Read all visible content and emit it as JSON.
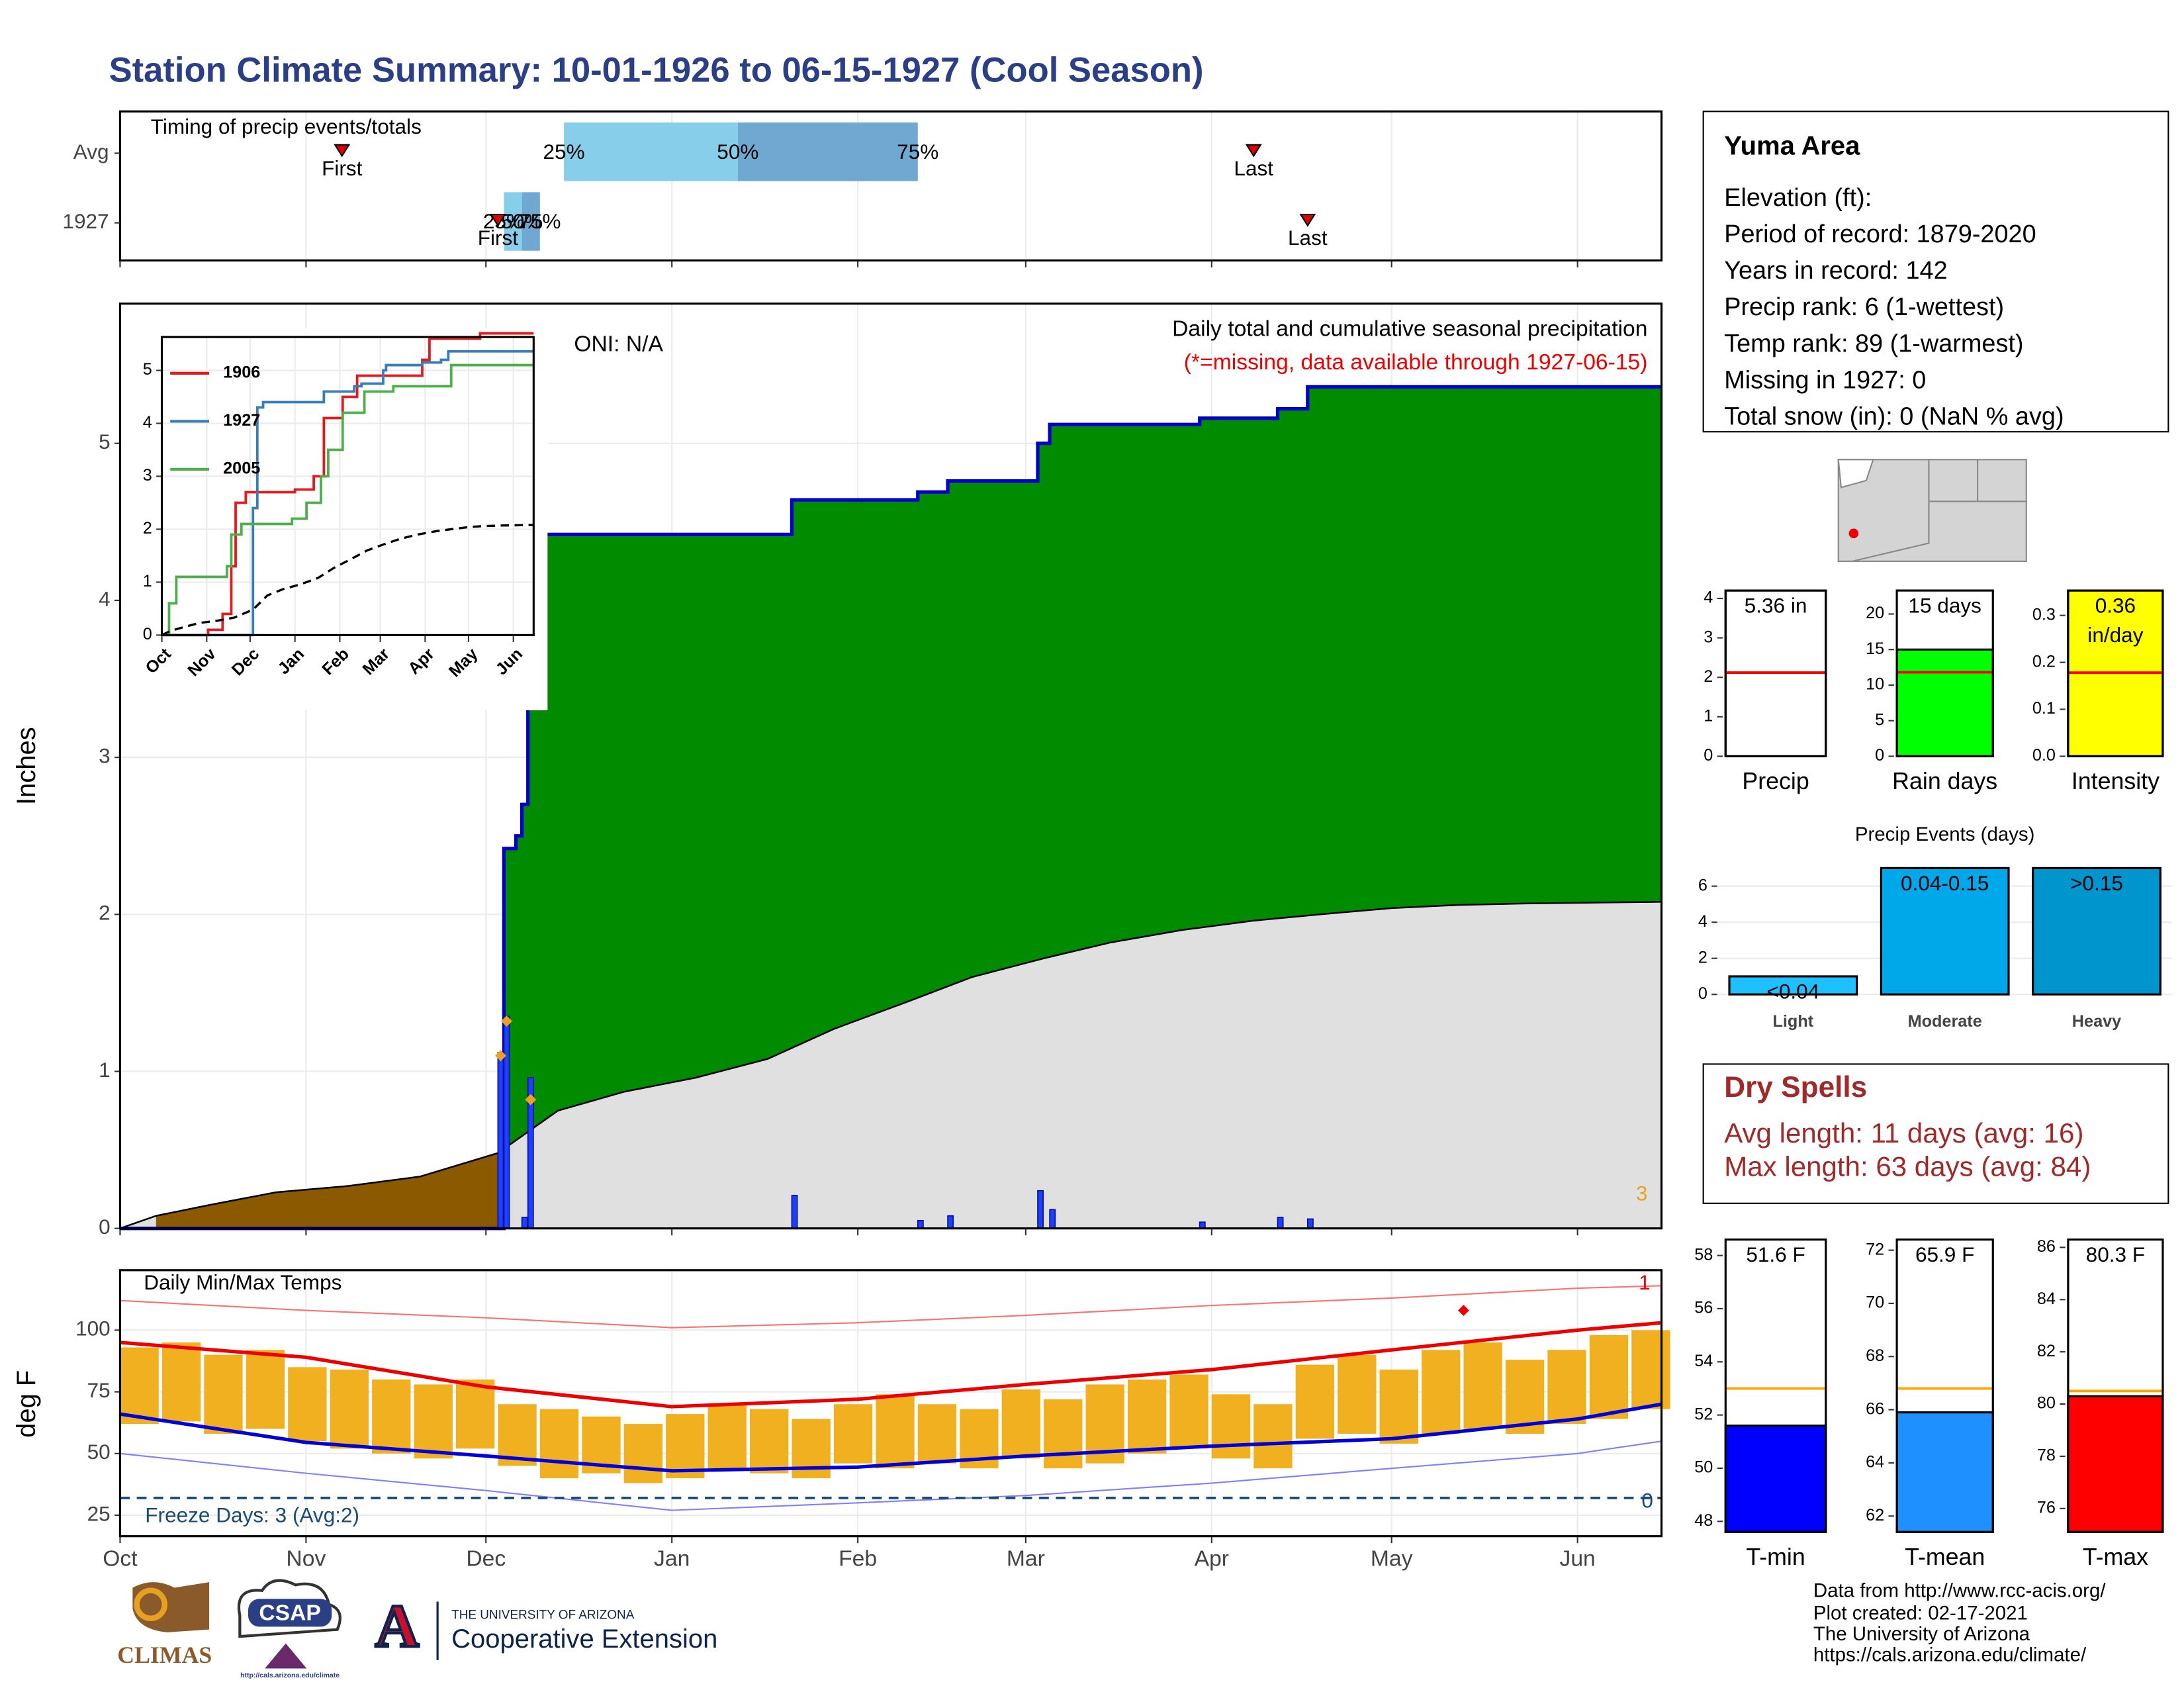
{
  "title": "Station Climate Summary: 10-01-1926 to 06-15-1927 (Cool Season)",
  "info": {
    "name": "Yuma Area",
    "lines": [
      "Elevation (ft):",
      "Period of record: 1879-2020",
      "Years in record: 142",
      "Precip rank: 6 (1-wettest)",
      "Temp rank: 89 (1-warmest)",
      "Missing in 1927: 0",
      "Total snow (in): 0 (NaN % avg)"
    ]
  },
  "dry_spells": {
    "title": "Dry Spells",
    "lines": [
      "Avg length: 11 days (avg: 16)",
      "Max length: 63 days (avg: 84)"
    ]
  },
  "footer": [
    "Data from http://www.rcc-acis.org/",
    "Plot created: 02-17-2021",
    "The University of Arizona",
    "https://cals.arizona.edu/climate/"
  ],
  "logos": {
    "climas": "CLIMAS",
    "csap": "CSAP",
    "csap_url": "http://cals.arizona.edu/climate",
    "ua_letter": "A",
    "ua": "THE UNIVERSITY OF ARIZONA",
    "extension": "Cooperative Extension"
  },
  "chart_data": [
    {
      "type": "timing",
      "title": "Timing of precip events/totals",
      "categories": [
        "Avg",
        "1927"
      ],
      "first_label": "First",
      "last_label": "Last",
      "quartile_labels": [
        "25%",
        "50%",
        "75%"
      ],
      "first": [
        37,
        63
      ],
      "last": [
        189,
        198
      ],
      "quartiles": [
        [
          74,
          103,
          133
        ],
        [
          64,
          67,
          70
        ]
      ],
      "colors": [
        "#87ceeb",
        "#6fa8d0"
      ],
      "marker_color": "#e00000"
    },
    {
      "type": "cumulative",
      "title": "Daily total and cumulative seasonal precipitation",
      "subtitle": "(*=missing, data available through 1927-06-15)",
      "annotation": "ONI: N/A",
      "ylabel": "Inches",
      "corner_note": 3,
      "ylim": [
        0,
        5.89
      ],
      "yticks": [
        0,
        1,
        2,
        3,
        4,
        5
      ],
      "daily": {
        "x": [
          63,
          64,
          67,
          68,
          112,
          133,
          138,
          153,
          155,
          180,
          193,
          198
        ],
        "values": [
          1.12,
          1.35,
          0.07,
          0.96,
          0.21,
          0.05,
          0.08,
          0.24,
          0.12,
          0.04,
          0.07,
          0.06
        ],
        "color": "#1f3fff"
      },
      "flags": {
        "x": [
          63,
          64,
          68
        ],
        "values": [
          1.1,
          1.32,
          0.82
        ],
        "color": "#f0a020"
      },
      "cumulative": {
        "x": [
          0,
          64,
          66,
          67,
          68,
          69,
          70,
          112,
          133,
          138,
          153,
          155,
          180,
          193,
          198,
          257
        ],
        "values": [
          0,
          2.42,
          2.5,
          2.7,
          3.35,
          4.4,
          4.42,
          4.64,
          4.69,
          4.76,
          5.0,
          5.12,
          5.16,
          5.22,
          5.36,
          5.36
        ],
        "color": "#008b00",
        "line_color": "#0000cc"
      },
      "avg": {
        "x": [
          0,
          6,
          15,
          26,
          38,
          50,
          63,
          73,
          84,
          96,
          108,
          119,
          131,
          142,
          154,
          165,
          177,
          189,
          200,
          212,
          223,
          235,
          257
        ],
        "values": [
          0,
          0.08,
          0.15,
          0.23,
          0.27,
          0.33,
          0.48,
          0.75,
          0.87,
          0.96,
          1.08,
          1.27,
          1.44,
          1.6,
          1.72,
          1.82,
          1.9,
          1.96,
          2.0,
          2.04,
          2.06,
          2.07,
          2.08
        ],
        "color": "#e0e0e0",
        "below_color": "#8b5a00"
      }
    },
    {
      "type": "line",
      "ylim": [
        0,
        5.63
      ],
      "yticks": [
        0,
        1,
        2,
        3,
        4,
        5
      ],
      "series": [
        {
          "name": "1906",
          "color": "#e41a1c",
          "x": [
            0,
            32,
            42,
            48,
            51,
            58,
            92,
            105,
            112,
            125,
            135,
            180,
            185,
            220,
            257
          ],
          "values": [
            0,
            0.1,
            0.4,
            1.3,
            2.5,
            2.7,
            2.75,
            3.0,
            4.1,
            4.5,
            4.9,
            5.2,
            5.6,
            5.7,
            5.7
          ]
        },
        {
          "name": "1927",
          "color": "#377eb8",
          "x": [
            0,
            63,
            66,
            70,
            112,
            133,
            138,
            153,
            155,
            180,
            193,
            198,
            257
          ],
          "values": [
            0,
            2.4,
            4.3,
            4.4,
            4.6,
            4.7,
            4.75,
            5.0,
            5.1,
            5.15,
            5.2,
            5.36,
            5.36
          ]
        },
        {
          "name": "2005",
          "color": "#4daf4a",
          "x": [
            0,
            5,
            10,
            30,
            45,
            48,
            55,
            90,
            100,
            110,
            115,
            125,
            140,
            160,
            200,
            257
          ],
          "values": [
            0,
            0.6,
            1.1,
            1.1,
            1.3,
            1.9,
            2.1,
            2.2,
            2.5,
            3.0,
            3.5,
            4.2,
            4.6,
            4.7,
            5.1,
            5.1
          ]
        }
      ]
    },
    {
      "type": "temperature",
      "title": "Daily Min/Max Temps",
      "ylabel": "deg F",
      "xlim": [
        0,
        257
      ],
      "xticks": [
        {
          "value": 0,
          "label": "Oct"
        },
        {
          "value": 31,
          "label": "Nov"
        },
        {
          "value": 61,
          "label": "Dec"
        },
        {
          "value": 92,
          "label": "Jan"
        },
        {
          "value": 123,
          "label": "Feb"
        },
        {
          "value": 151,
          "label": "Mar"
        },
        {
          "value": 182,
          "label": "Apr"
        },
        {
          "value": 212,
          "label": "May"
        },
        {
          "value": 243,
          "label": "Jun"
        }
      ],
      "ylim": [
        16.5,
        124.3
      ],
      "yticks": [
        25,
        50,
        75,
        100
      ],
      "x": [
        0,
        7,
        14,
        21,
        28,
        35,
        42,
        49,
        56,
        63,
        70,
        77,
        84,
        91,
        98,
        105,
        112,
        119,
        126,
        133,
        140,
        147,
        154,
        161,
        168,
        175,
        182,
        189,
        196,
        203,
        210,
        217,
        224,
        231,
        238,
        245,
        252
      ],
      "max": [
        93,
        95,
        90,
        92,
        85,
        84,
        80,
        78,
        80,
        70,
        68,
        65,
        62,
        66,
        70,
        68,
        64,
        70,
        74,
        70,
        68,
        76,
        72,
        78,
        80,
        82,
        74,
        70,
        86,
        90,
        84,
        92,
        95,
        88,
        92,
        98,
        100
      ],
      "min": [
        62,
        63,
        58,
        60,
        55,
        52,
        50,
        48,
        52,
        45,
        40,
        42,
        38,
        40,
        44,
        42,
        40,
        46,
        44,
        46,
        44,
        48,
        44,
        46,
        50,
        52,
        48,
        44,
        56,
        58,
        54,
        58,
        60,
        58,
        62,
        64,
        68
      ],
      "bar_color": "#f0b020",
      "avg_max": {
        "x": [
          0,
          31,
          61,
          92,
          123,
          151,
          182,
          212,
          243,
          257
        ],
        "values": [
          95,
          89,
          77,
          69,
          72,
          78,
          84,
          92,
          100,
          103
        ],
        "color": "#ee0000"
      },
      "avg_min": {
        "x": [
          0,
          31,
          61,
          92,
          123,
          151,
          182,
          212,
          243,
          257
        ],
        "values": [
          66,
          54.5,
          49,
          43,
          44.5,
          49,
          53,
          56,
          64,
          70
        ],
        "color": "#0000dd"
      },
      "record_max": {
        "x": [
          0,
          31,
          61,
          92,
          123,
          151,
          182,
          212,
          243,
          257
        ],
        "values": [
          112,
          108,
          105,
          101,
          103,
          106,
          110,
          113,
          117,
          118
        ],
        "color": "#ff7070"
      },
      "record_min": {
        "x": [
          0,
          31,
          61,
          92,
          123,
          151,
          182,
          212,
          243,
          257
        ],
        "values": [
          50,
          42,
          35,
          27,
          30,
          33,
          38,
          44,
          50,
          55
        ],
        "color": "#8080ff"
      },
      "record_marks": {
        "x": [
          224
        ],
        "values": [
          108
        ],
        "color": "#ee0000"
      },
      "freeze": 32,
      "freeze_label": "Freeze Days: 3 (Avg:2)",
      "freeze_color": "#1a4a7a",
      "high_count": 1,
      "low_count": 0
    },
    {
      "type": "summary",
      "category": "Precip",
      "value": 5.36,
      "value_label": [
        "5.36 in"
      ],
      "avg": 2.12,
      "ylim": [
        0,
        4.2
      ],
      "yticks": [
        0,
        1,
        2,
        3,
        4
      ],
      "color": "#ffffff",
      "avg_color": "#ff0000"
    },
    {
      "type": "summary",
      "category": "Rain days",
      "value": 15,
      "value_label": [
        "15 days"
      ],
      "avg": 11.8,
      "ylim": [
        0,
        23.3
      ],
      "yticks": [
        0,
        5,
        10,
        15,
        20
      ],
      "color": "#00ff00",
      "avg_color": "#ff0000"
    },
    {
      "type": "summary",
      "category": "Intensity",
      "value": 0.36,
      "value_label": [
        "0.36",
        "in/day"
      ],
      "avg": 0.178,
      "ylim": [
        0,
        0.353
      ],
      "yticks": [
        {
          "value": 0,
          "label": "0.0"
        },
        {
          "value": 0.1,
          "label": "0.1"
        },
        {
          "value": 0.2,
          "label": "0.2"
        },
        {
          "value": 0.3,
          "label": "0.3"
        }
      ],
      "color": "#ffff00",
      "avg_color": "#ff0000"
    },
    {
      "type": "bar",
      "title": "Precip Events (days)",
      "categories": [
        "Light",
        "Moderate",
        "Heavy"
      ],
      "values": [
        1,
        7,
        7
      ],
      "value_labels": [
        "<0.04",
        "0.04-0.15",
        ">0.15"
      ],
      "ylim": [
        0,
        7.1
      ],
      "yticks": [
        0,
        2,
        4,
        6
      ],
      "colors": [
        "#1ec0ff",
        "#00a8ea",
        "#0095cc"
      ]
    },
    {
      "type": "summary",
      "category": "T-min",
      "value": 51.6,
      "value_label": [
        "51.6 F"
      ],
      "avg": 53,
      "ylim": [
        47.6,
        58.6
      ],
      "yticks": [
        48,
        50,
        52,
        54,
        56,
        58
      ],
      "color": "#0000ff",
      "avg_color": "#ffa500"
    },
    {
      "type": "summary",
      "category": "T-mean",
      "value": 65.9,
      "value_label": [
        "65.9 F"
      ],
      "avg": 66.8,
      "ylim": [
        61.4,
        72.4
      ],
      "yticks": [
        62,
        64,
        66,
        68,
        70,
        72
      ],
      "color": "#1e90ff",
      "avg_color": "#ffa500"
    },
    {
      "type": "summary",
      "category": "T-max",
      "value": 80.3,
      "value_label": [
        "80.3 F"
      ],
      "avg": 80.5,
      "ylim": [
        75.1,
        86.3
      ],
      "yticks": [
        76,
        78,
        80,
        82,
        84,
        86
      ],
      "color": "#ff0000",
      "avg_color": "#ffa500"
    }
  ]
}
